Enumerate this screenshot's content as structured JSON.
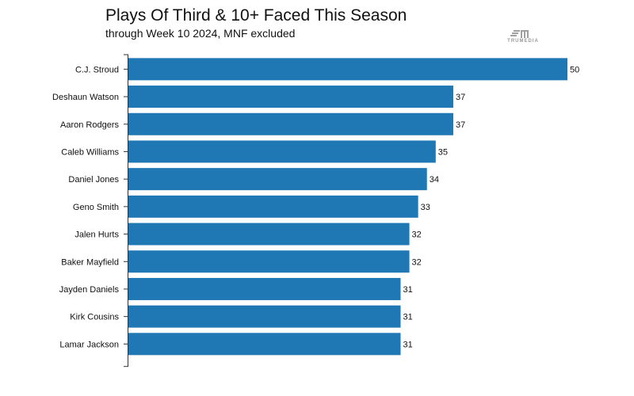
{
  "header": {
    "title": "Plays Of Third & 10+ Faced This Season",
    "subtitle": "through Week 10 2024, MNF excluded",
    "logo_text": "TRUMEDIA"
  },
  "colors": {
    "bar": "#1f77b4",
    "axis": "#333333",
    "text": "#111111"
  },
  "chart_data": {
    "type": "bar",
    "orientation": "horizontal",
    "title": "Plays Of Third & 10+ Faced This Season",
    "subtitle": "through Week 10 2024, MNF excluded",
    "categories": [
      "C.J. Stroud",
      "Deshaun Watson",
      "Aaron Rodgers",
      "Caleb Williams",
      "Daniel Jones",
      "Geno Smith",
      "Jalen Hurts",
      "Baker Mayfield",
      "Jayden Daniels",
      "Kirk Cousins",
      "Lamar Jackson"
    ],
    "values": [
      50,
      37,
      37,
      35,
      34,
      33,
      32,
      32,
      31,
      31,
      31
    ],
    "xlim": [
      0,
      50
    ],
    "data_labels": true,
    "grid": false,
    "legend": "none"
  }
}
